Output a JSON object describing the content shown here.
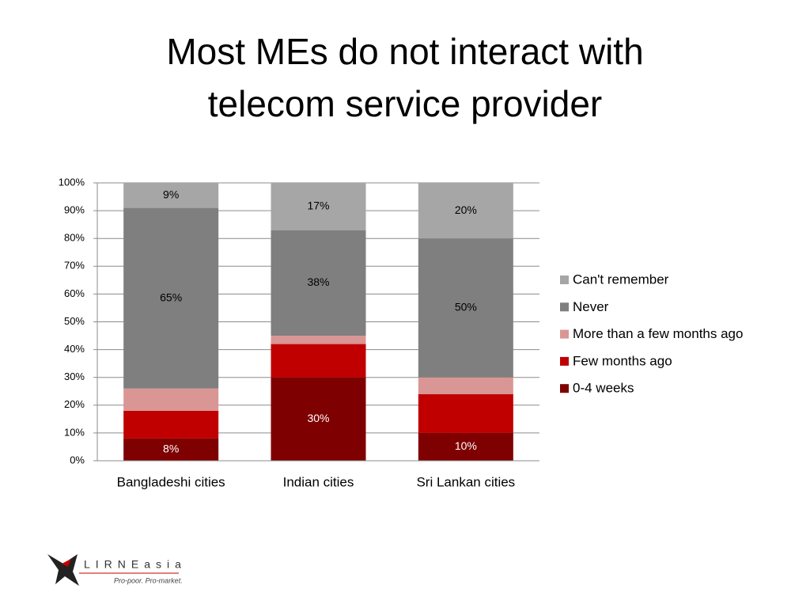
{
  "chart_data": {
    "type": "stacked_bar",
    "title": "Most MEs do not interact with telecom service provider",
    "categories": [
      "Bangladeshi cities",
      "Indian cities",
      "Sri Lankan cities"
    ],
    "series": [
      {
        "name": "0-4 weeks",
        "color": "#7f0000",
        "label_color": "#ffffff",
        "values": [
          8,
          30,
          10
        ],
        "value_labels": [
          "8%",
          "30%",
          "10%"
        ]
      },
      {
        "name": "Few months ago",
        "color": "#c00000",
        "label_color": "#ffffff",
        "values": [
          10,
          12,
          14
        ],
        "value_labels": [
          null,
          null,
          null
        ]
      },
      {
        "name": "More than a few months ago",
        "color": "#d99694",
        "label_color": "#000000",
        "values": [
          8,
          3,
          6
        ],
        "value_labels": [
          null,
          null,
          null
        ]
      },
      {
        "name": "Never",
        "color": "#7f7f7f",
        "label_color": "#000000",
        "values": [
          65,
          38,
          50
        ],
        "value_labels": [
          "65%",
          "38%",
          "50%"
        ]
      },
      {
        "name": "Can't remember",
        "color": "#a6a6a6",
        "label_color": "#000000",
        "values": [
          9,
          17,
          20
        ],
        "value_labels": [
          "9%",
          "17%",
          "20%"
        ]
      }
    ],
    "ylim": [
      0,
      100
    ],
    "yticks": [
      {
        "value": 0,
        "label": "0%"
      },
      {
        "value": 10,
        "label": "10%"
      },
      {
        "value": 20,
        "label": "20%"
      },
      {
        "value": 30,
        "label": "30%"
      },
      {
        "value": 40,
        "label": "40%"
      },
      {
        "value": 50,
        "label": "50%"
      },
      {
        "value": 60,
        "label": "60%"
      },
      {
        "value": 70,
        "label": "70%"
      },
      {
        "value": 80,
        "label": "80%"
      },
      {
        "value": 90,
        "label": "90%"
      },
      {
        "value": 100,
        "label": "100%"
      }
    ],
    "grid": true,
    "legend": "right"
  },
  "logo": {
    "name": "LIRNEasia",
    "tagline": "Pro-poor. Pro-market."
  }
}
